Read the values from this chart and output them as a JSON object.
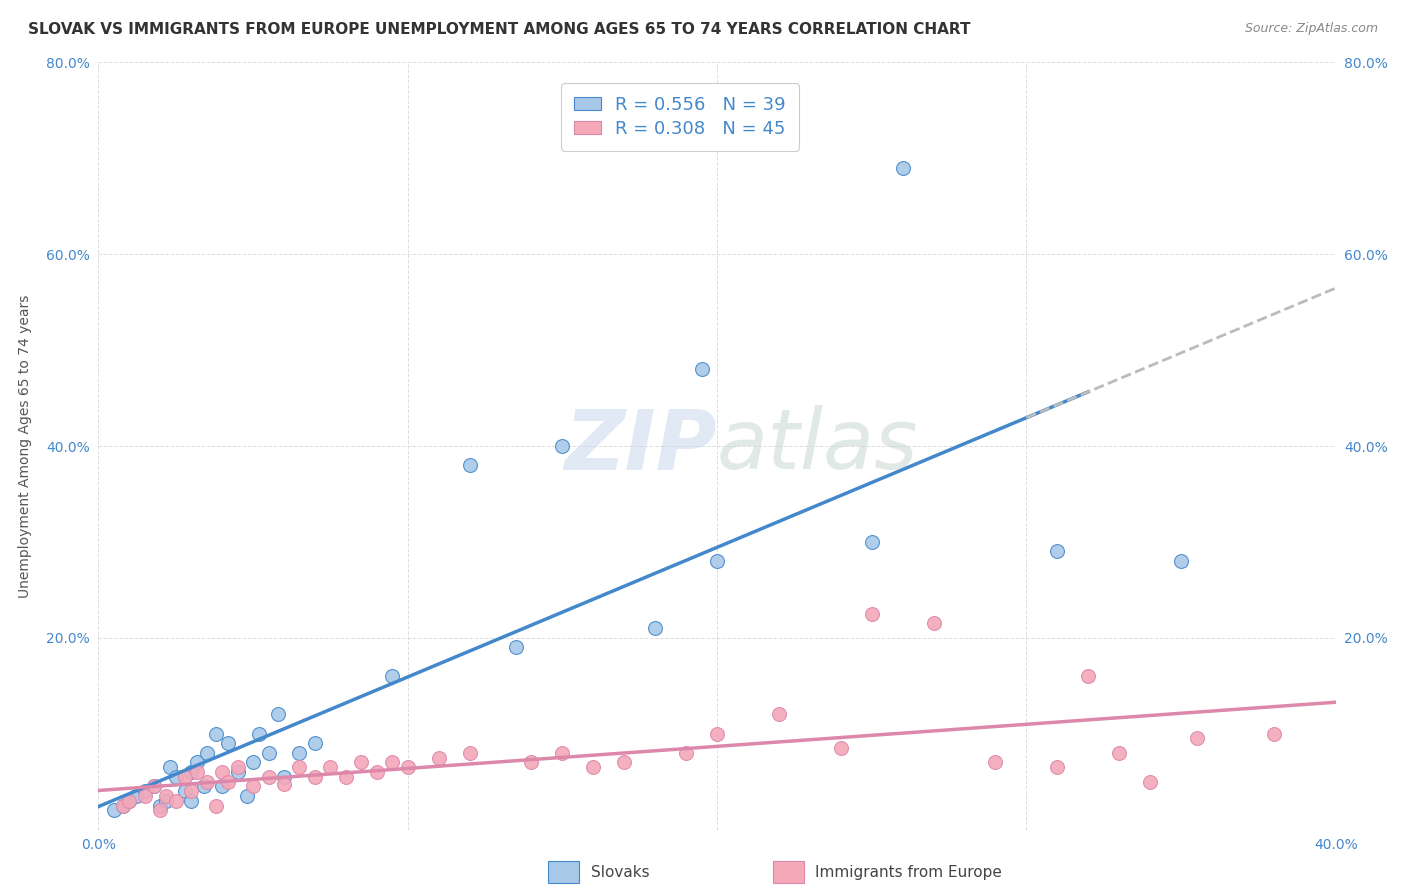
{
  "title": "SLOVAK VS IMMIGRANTS FROM EUROPE UNEMPLOYMENT AMONG AGES 65 TO 74 YEARS CORRELATION CHART",
  "source": "Source: ZipAtlas.com",
  "ylabel": "Unemployment Among Ages 65 to 74 years",
  "xlim": [
    0.0,
    0.4
  ],
  "ylim": [
    0.0,
    0.8
  ],
  "xticks": [
    0.0,
    0.1,
    0.2,
    0.3,
    0.4
  ],
  "yticks": [
    0.0,
    0.2,
    0.4,
    0.6,
    0.8
  ],
  "xticklabels": [
    "0.0%",
    "",
    "",
    "",
    "40.0%"
  ],
  "yticklabels_left": [
    "",
    "20.0%",
    "40.0%",
    "60.0%",
    "80.0%"
  ],
  "yticklabels_right": [
    "",
    "20.0%",
    "40.0%",
    "60.0%",
    "80.0%"
  ],
  "watermark": "ZIPatlas",
  "slovak_color": "#a8c8e8",
  "immigrant_color": "#f4a8b8",
  "slovak_line_color": "#4488cc",
  "immigrant_line_color": "#dd88aa",
  "regression_ext_color": "#bbbbbb",
  "background_color": "#ffffff",
  "grid_color": "#dddddd",
  "title_fontsize": 11,
  "axis_label_fontsize": 10,
  "tick_fontsize": 10,
  "tick_color": "#4488cc",
  "slovak_scatter_x": [
    0.005,
    0.008,
    0.01,
    0.012,
    0.015,
    0.018,
    0.02,
    0.022,
    0.023,
    0.025,
    0.028,
    0.03,
    0.03,
    0.032,
    0.034,
    0.035,
    0.038,
    0.04,
    0.042,
    0.045,
    0.048,
    0.05,
    0.052,
    0.055,
    0.058,
    0.06,
    0.065,
    0.07,
    0.095,
    0.12,
    0.135,
    0.15,
    0.18,
    0.195,
    0.2,
    0.25,
    0.26,
    0.31,
    0.35
  ],
  "slovak_scatter_y": [
    0.02,
    0.025,
    0.03,
    0.035,
    0.04,
    0.045,
    0.025,
    0.03,
    0.065,
    0.055,
    0.04,
    0.03,
    0.06,
    0.07,
    0.045,
    0.08,
    0.1,
    0.045,
    0.09,
    0.06,
    0.035,
    0.07,
    0.1,
    0.08,
    0.12,
    0.055,
    0.08,
    0.09,
    0.16,
    0.38,
    0.19,
    0.4,
    0.21,
    0.48,
    0.28,
    0.3,
    0.69,
    0.29,
    0.28
  ],
  "immigrant_scatter_x": [
    0.008,
    0.01,
    0.015,
    0.018,
    0.02,
    0.022,
    0.025,
    0.028,
    0.03,
    0.032,
    0.035,
    0.038,
    0.04,
    0.042,
    0.045,
    0.05,
    0.055,
    0.06,
    0.065,
    0.07,
    0.075,
    0.08,
    0.085,
    0.09,
    0.095,
    0.1,
    0.11,
    0.12,
    0.14,
    0.15,
    0.16,
    0.17,
    0.19,
    0.2,
    0.22,
    0.24,
    0.25,
    0.27,
    0.29,
    0.31,
    0.32,
    0.33,
    0.34,
    0.355,
    0.38
  ],
  "immigrant_scatter_y": [
    0.025,
    0.03,
    0.035,
    0.045,
    0.02,
    0.035,
    0.03,
    0.055,
    0.04,
    0.06,
    0.05,
    0.025,
    0.06,
    0.05,
    0.065,
    0.045,
    0.055,
    0.048,
    0.065,
    0.055,
    0.065,
    0.055,
    0.07,
    0.06,
    0.07,
    0.065,
    0.075,
    0.08,
    0.07,
    0.08,
    0.065,
    0.07,
    0.08,
    0.1,
    0.12,
    0.085,
    0.225,
    0.215,
    0.07,
    0.065,
    0.16,
    0.08,
    0.05,
    0.095,
    0.1
  ]
}
